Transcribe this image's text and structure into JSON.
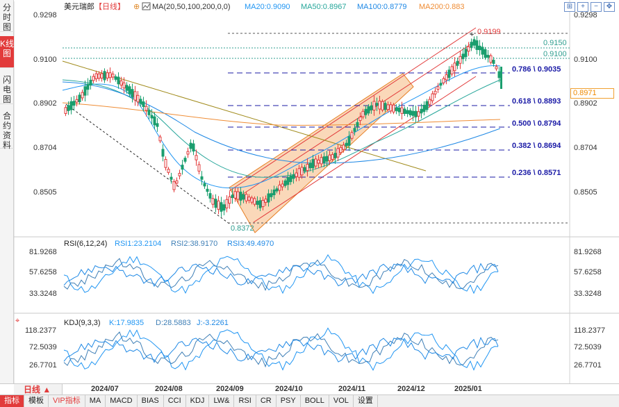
{
  "side_tabs": [
    "分时图",
    "K线图",
    "闪电图",
    "合约资料"
  ],
  "header": {
    "symbol": "美元瑞郎",
    "period_tag": "【日线】",
    "ma_label": "MA(20,50,100,200,0,0)",
    "ma20": "MA20:0.9090",
    "ma50": "MA50:0.8967",
    "ma100": "MA100:0.8779",
    "ma200": "MA200:0.883"
  },
  "price_axis": [
    "0.9298",
    "0.9100",
    "0.8902",
    "0.8704",
    "0.8505"
  ],
  "current_price": "0.8971",
  "levels": {
    "high": "0.9199",
    "r1": "0.9150",
    "r2": "0.9100",
    "low": "0.8372"
  },
  "fib": [
    {
      "label": "0.786 \\ 0.9035"
    },
    {
      "label": "0.618 \\ 0.8893"
    },
    {
      "label": "0.500 \\ 0.8794"
    },
    {
      "label": "0.382 \\ 0.8694"
    },
    {
      "label": "0.236 \\ 0.8571"
    }
  ],
  "rsi": {
    "title": "RSI(6,12,24)",
    "rsi1": "RSI1:23.2104",
    "rsi2": "RSI2:38.9170",
    "rsi3": "RSI3:49.4970",
    "axis": [
      "81.9268",
      "57.6258",
      "33.3248"
    ]
  },
  "kdj": {
    "title": "KDJ(9,3,3)",
    "k": "K:17.9835",
    "d": "D:28.5883",
    "j": "J:-3.2261",
    "axis": [
      "118.2377",
      "72.5039",
      "26.7701"
    ]
  },
  "period_button": "日线",
  "dates": [
    "2024/07",
    "2024/08",
    "2024/09",
    "2024/10",
    "2024/11",
    "2024/12",
    "2025/01"
  ],
  "bottom_tabs": [
    "指标",
    "模板",
    "VIP指标",
    "MA",
    "MACD",
    "BIAS",
    "CCI",
    "KDJ",
    "LW&",
    "RSI",
    "CR",
    "PSY",
    "BOLL",
    "VOL",
    "设置"
  ],
  "colors": {
    "up": "#e23b3b",
    "down": "#1a9e6e",
    "ma20": "#2196f3",
    "ma50": "#26a69a",
    "ma100": "#1e88e5",
    "ma200": "#ef8c34",
    "fib": "#1a1aa6"
  }
}
